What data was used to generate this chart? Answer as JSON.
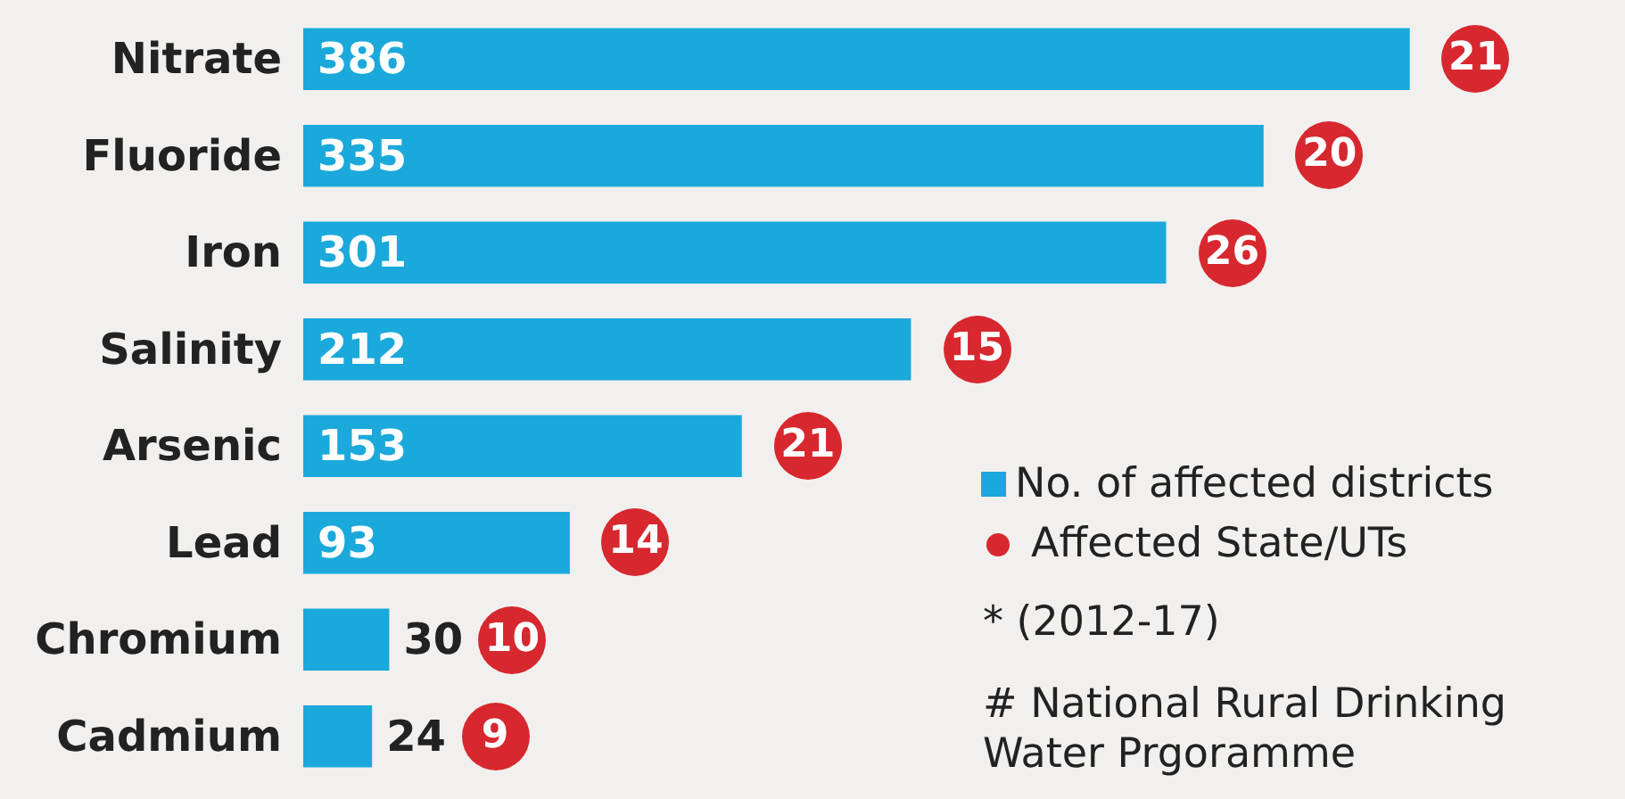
{
  "chart_data": {
    "type": "bar",
    "orientation": "horizontal",
    "data_labels": true,
    "legend": "bottom right",
    "categories": [
      "Nitrate",
      "Fluoride",
      "Iron",
      "Salinity",
      "Arsenic",
      "Lead",
      "Chromium",
      "Cadmium"
    ],
    "series": [
      {
        "name": "No. of affected districts",
        "color": "#1ba9db",
        "values": [
          386,
          335,
          301,
          212,
          153,
          93,
          30,
          24
        ]
      }
    ],
    "annotations": [
      {
        "text": "21",
        "x": 386,
        "y": "Nitrate"
      },
      {
        "text": "20",
        "x": 335,
        "y": "Fluoride"
      },
      {
        "text": "26",
        "x": 301,
        "y": "Iron"
      },
      {
        "text": "15",
        "x": 212,
        "y": "Salinity"
      },
      {
        "text": "21",
        "x": 153,
        "y": "Arsenic"
      },
      {
        "text": "14",
        "x": 93,
        "y": "Lead"
      },
      {
        "text": "10",
        "x": 30,
        "y": "Chromium"
      },
      {
        "text": "9",
        "x": 24,
        "y": "Cadmium"
      },
      "Affected State/UTs",
      "* (2012-17)",
      "# National Rural Drinking Water Prgoramme"
    ]
  }
}
